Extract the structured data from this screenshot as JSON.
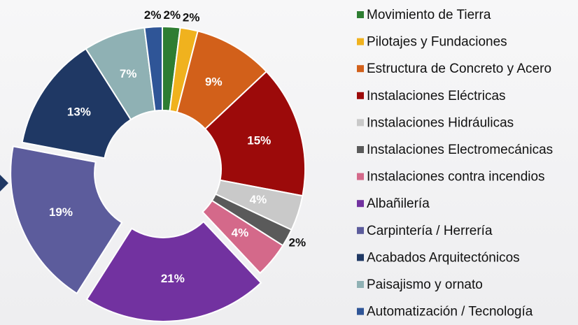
{
  "chart_data": {
    "type": "donut",
    "categories": [
      "Movimiento de Tierra",
      "Pilotajes y Fundaciones",
      "Estructura de Concreto y Acero",
      "Instalaciones Eléctricas",
      "Instalaciones Hidráulicas",
      "Instalaciones Electromecánicas",
      "Instalaciones contra incendios",
      "Albañilería",
      "Carpintería / Herrería",
      "Acabados Arquitectónicos",
      "Paisajismo y ornato",
      "Automatización / Tecnología"
    ],
    "values": [
      2,
      2,
      9,
      15,
      4,
      2,
      4,
      21,
      19,
      13,
      7,
      2
    ],
    "value_labels": [
      "2%",
      "2%",
      "9%",
      "15%",
      "4%",
      "2%",
      "4%",
      "21%",
      "19%",
      "13%",
      "7%",
      "2%"
    ],
    "colors": [
      "#2e7d32",
      "#f0b21e",
      "#d2601a",
      "#9c0a0a",
      "#c9c9c9",
      "#5a5a5a",
      "#d4698a",
      "#7232a0",
      "#5c5c9c",
      "#1f3864",
      "#8fb1b4",
      "#2f5597"
    ],
    "legend": "right"
  }
}
